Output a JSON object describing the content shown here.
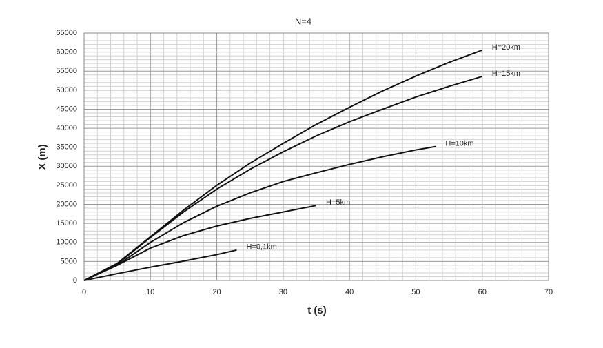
{
  "chart_data": {
    "type": "line",
    "title": "N=4",
    "x_label": "t (s)",
    "y_label": "X (m)",
    "xlim": [
      0,
      70
    ],
    "xticks": [
      0,
      10,
      20,
      30,
      40,
      50,
      60,
      70
    ],
    "ylim": [
      0,
      65000
    ],
    "yticks": [
      0,
      5000,
      10000,
      15000,
      20000,
      25000,
      30000,
      35000,
      40000,
      45000,
      50000,
      55000,
      60000,
      65000
    ],
    "grid": true,
    "series": [
      {
        "name": "H=20km",
        "color": "#111111",
        "x": [
          0,
          5,
          10,
          15,
          20,
          25,
          30,
          35,
          40,
          45,
          50,
          55,
          60
        ],
        "values": [
          0,
          4500,
          11500,
          18500,
          25000,
          30800,
          36000,
          41000,
          45500,
          49800,
          53700,
          57300,
          60500
        ]
      },
      {
        "name": "H=15km",
        "color": "#111111",
        "x": [
          0,
          5,
          10,
          15,
          20,
          25,
          30,
          35,
          40,
          45,
          50,
          55,
          60
        ],
        "values": [
          0,
          4300,
          11300,
          18000,
          24000,
          29200,
          33800,
          38000,
          41700,
          45000,
          48200,
          51000,
          53600
        ]
      },
      {
        "name": "H=10km",
        "color": "#111111",
        "x": [
          0,
          5,
          10,
          15,
          20,
          25,
          30,
          35,
          40,
          45,
          50,
          53
        ],
        "values": [
          0,
          4000,
          10000,
          15200,
          19500,
          23000,
          26000,
          28300,
          30500,
          32500,
          34300,
          35200
        ]
      },
      {
        "name": "H=5km",
        "color": "#111111",
        "x": [
          0,
          5,
          10,
          15,
          20,
          25,
          30,
          35
        ],
        "values": [
          0,
          4000,
          8500,
          11800,
          14300,
          16300,
          18000,
          19700
        ]
      },
      {
        "name": "H=0,1km",
        "color": "#111111",
        "x": [
          0,
          5,
          10,
          15,
          20,
          23
        ],
        "values": [
          0,
          1800,
          3500,
          5100,
          6800,
          8000
        ]
      }
    ]
  }
}
